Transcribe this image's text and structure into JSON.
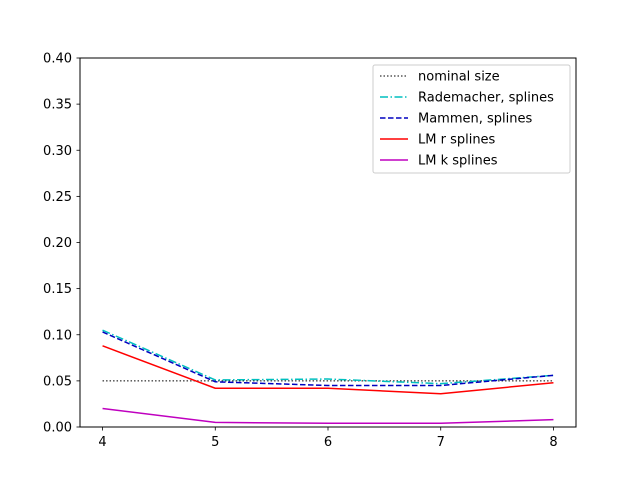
{
  "chart_data": {
    "type": "line",
    "title": "",
    "xlabel": "",
    "ylabel": "",
    "x": [
      4,
      5,
      6,
      7,
      8
    ],
    "xlim": [
      3.8,
      8.2
    ],
    "ylim": [
      0.0,
      0.4
    ],
    "xticks": [
      4,
      5,
      6,
      7,
      8
    ],
    "xtick_labels": [
      "4",
      "5",
      "6",
      "7",
      "8"
    ],
    "yticks": [
      0.0,
      0.05,
      0.1,
      0.15,
      0.2,
      0.25,
      0.3,
      0.35,
      0.4
    ],
    "ytick_labels": [
      "0.00",
      "0.05",
      "0.10",
      "0.15",
      "0.20",
      "0.25",
      "0.30",
      "0.35",
      "0.40"
    ],
    "grid": false,
    "legend_position": "top-right",
    "series": [
      {
        "name": "nominal size",
        "values": [
          0.05,
          0.05,
          0.05,
          0.05,
          0.05
        ],
        "color": "#000000",
        "style": "dotted"
      },
      {
        "name": "Rademacher, splines",
        "values": [
          0.105,
          0.051,
          0.052,
          0.047,
          0.056
        ],
        "color": "#00bfbf",
        "style": "dashdot"
      },
      {
        "name": "Mammen, splines",
        "values": [
          0.103,
          0.049,
          0.045,
          0.045,
          0.056
        ],
        "color": "#0000bf",
        "style": "dashed"
      },
      {
        "name": "LM r splines",
        "values": [
          0.088,
          0.042,
          0.042,
          0.036,
          0.048
        ],
        "color": "#ff0000",
        "style": "solid"
      },
      {
        "name": "LM k splines",
        "values": [
          0.02,
          0.005,
          0.004,
          0.004,
          0.008
        ],
        "color": "#bf00bf",
        "style": "solid"
      }
    ]
  }
}
